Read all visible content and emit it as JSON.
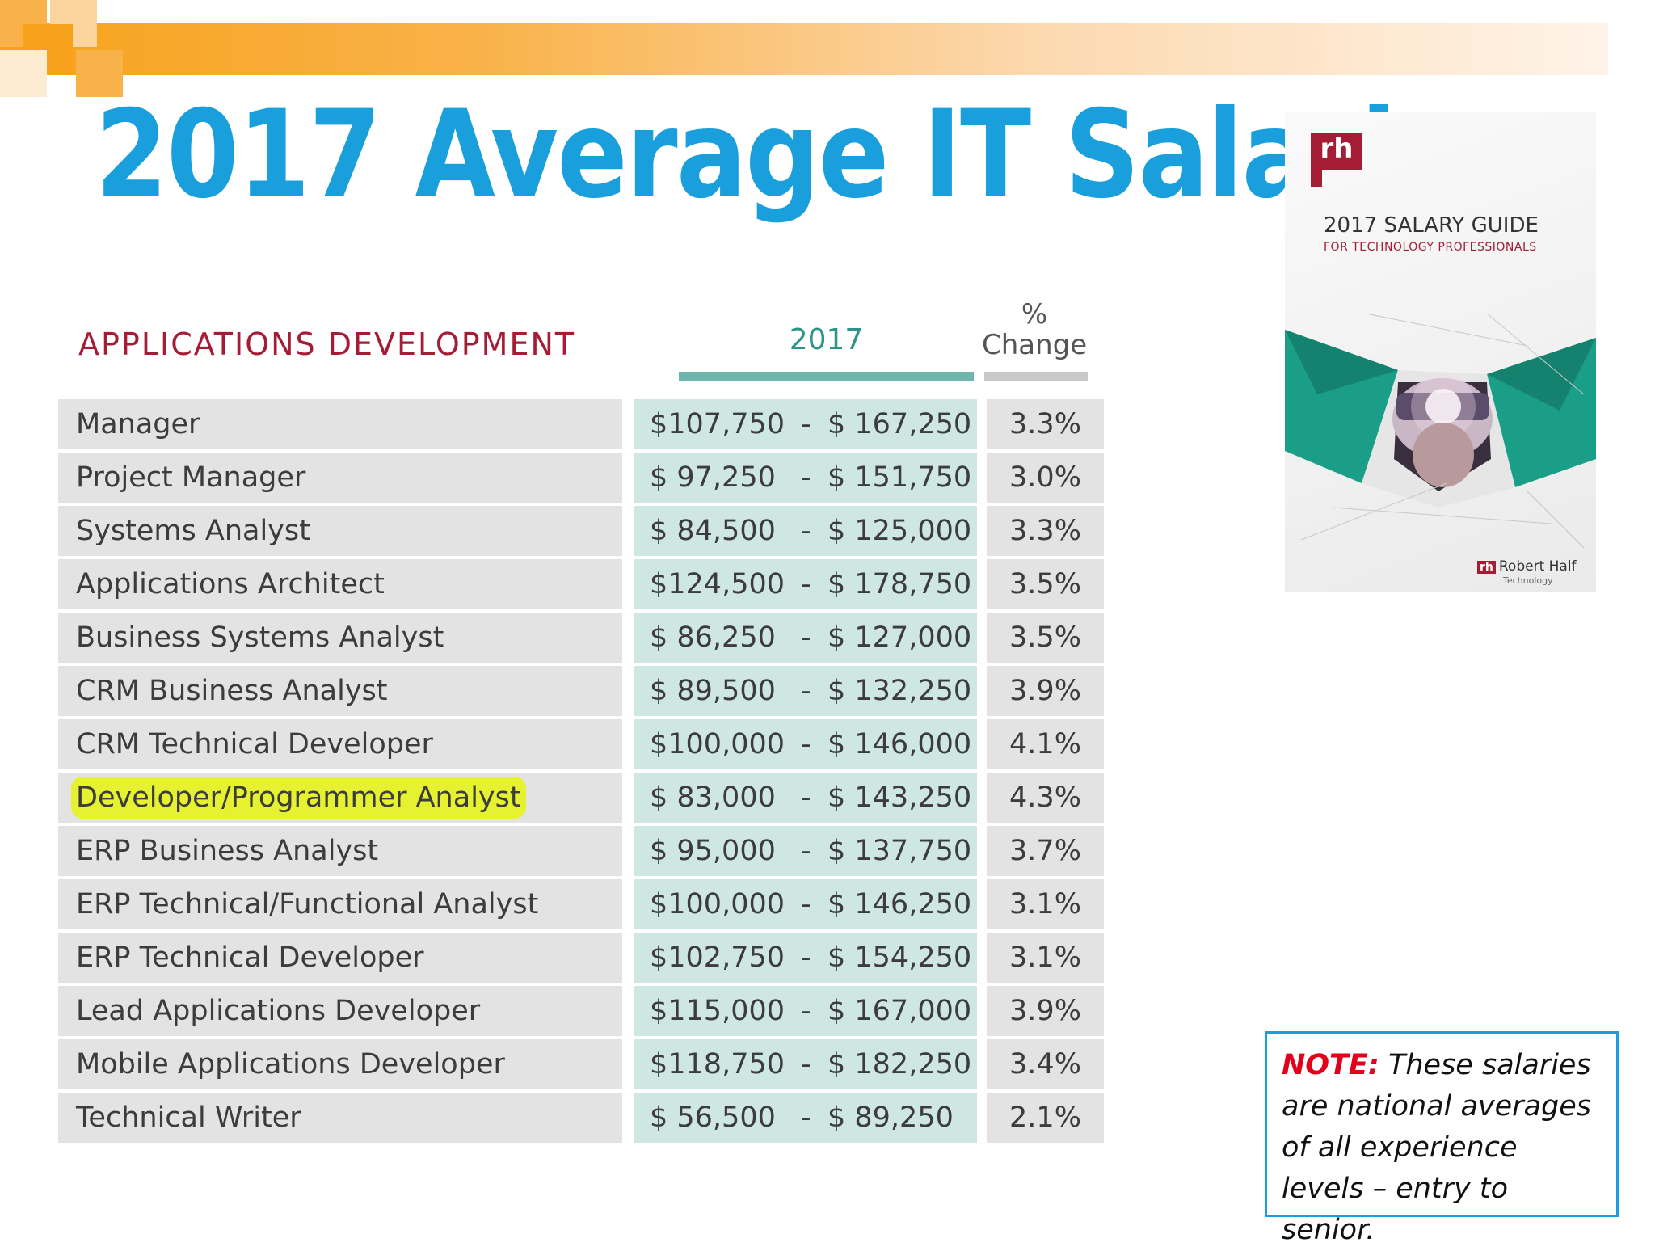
{
  "slide": {
    "title": "2017 Average IT Salaries"
  },
  "table": {
    "section": "APPLICATIONS DEVELOPMENT",
    "col_year": "2017",
    "col_change_top": "%",
    "col_change_bottom": "Change",
    "rows": [
      {
        "title": "Manager",
        "low": "$107,750",
        "high": "$ 167,250",
        "change": "3.3%"
      },
      {
        "title": "Project Manager",
        "low": "$  97,250",
        "high": "$ 151,750",
        "change": "3.0%"
      },
      {
        "title": "Systems Analyst",
        "low": "$  84,500",
        "high": "$ 125,000",
        "change": "3.3%"
      },
      {
        "title": "Applications Architect",
        "low": "$124,500",
        "high": "$ 178,750",
        "change": "3.5%"
      },
      {
        "title": "Business Systems Analyst",
        "low": "$  86,250",
        "high": "$ 127,000",
        "change": "3.5%"
      },
      {
        "title": "CRM Business Analyst",
        "low": "$  89,500",
        "high": "$ 132,250",
        "change": "3.9%"
      },
      {
        "title": "CRM Technical Developer",
        "low": "$100,000",
        "high": "$ 146,000",
        "change": "4.1%"
      },
      {
        "title": "Developer/Programmer Analyst",
        "low": "$  83,000",
        "high": "$ 143,250",
        "change": "4.3%",
        "highlighted": true
      },
      {
        "title": "ERP Business Analyst",
        "low": "$  95,000",
        "high": "$ 137,750",
        "change": "3.7%"
      },
      {
        "title": "ERP Technical/Functional Analyst",
        "low": "$100,000",
        "high": "$ 146,250",
        "change": "3.1%"
      },
      {
        "title": "ERP Technical Developer",
        "low": "$102,750",
        "high": "$ 154,250",
        "change": "3.1%"
      },
      {
        "title": "Lead Applications Developer",
        "low": "$115,000",
        "high": "$ 167,000",
        "change": "3.9%"
      },
      {
        "title": "Mobile Applications Developer",
        "low": "$118,750",
        "high": "$ 182,250",
        "change": "3.4%"
      },
      {
        "title": "Technical Writer",
        "low": "$  56,500",
        "high": "$   89,250",
        "change": "2.1%"
      }
    ],
    "range_separator": "-"
  },
  "cover": {
    "logo": "rh",
    "title": "2017 SALARY GUIDE",
    "subtitle": "FOR TECHNOLOGY PROFESSIONALS",
    "brand": "Robert Half",
    "brand_sub": "Technology"
  },
  "note": {
    "label": "NOTE:",
    "text": "These salaries are national averages of all experience levels – entry to senior."
  },
  "colors": {
    "title": "#1a9fdd",
    "section": "#a51d35",
    "highlight": "#e6f230",
    "range_cell": "#cfe7e3",
    "note_label": "#e3001b"
  }
}
